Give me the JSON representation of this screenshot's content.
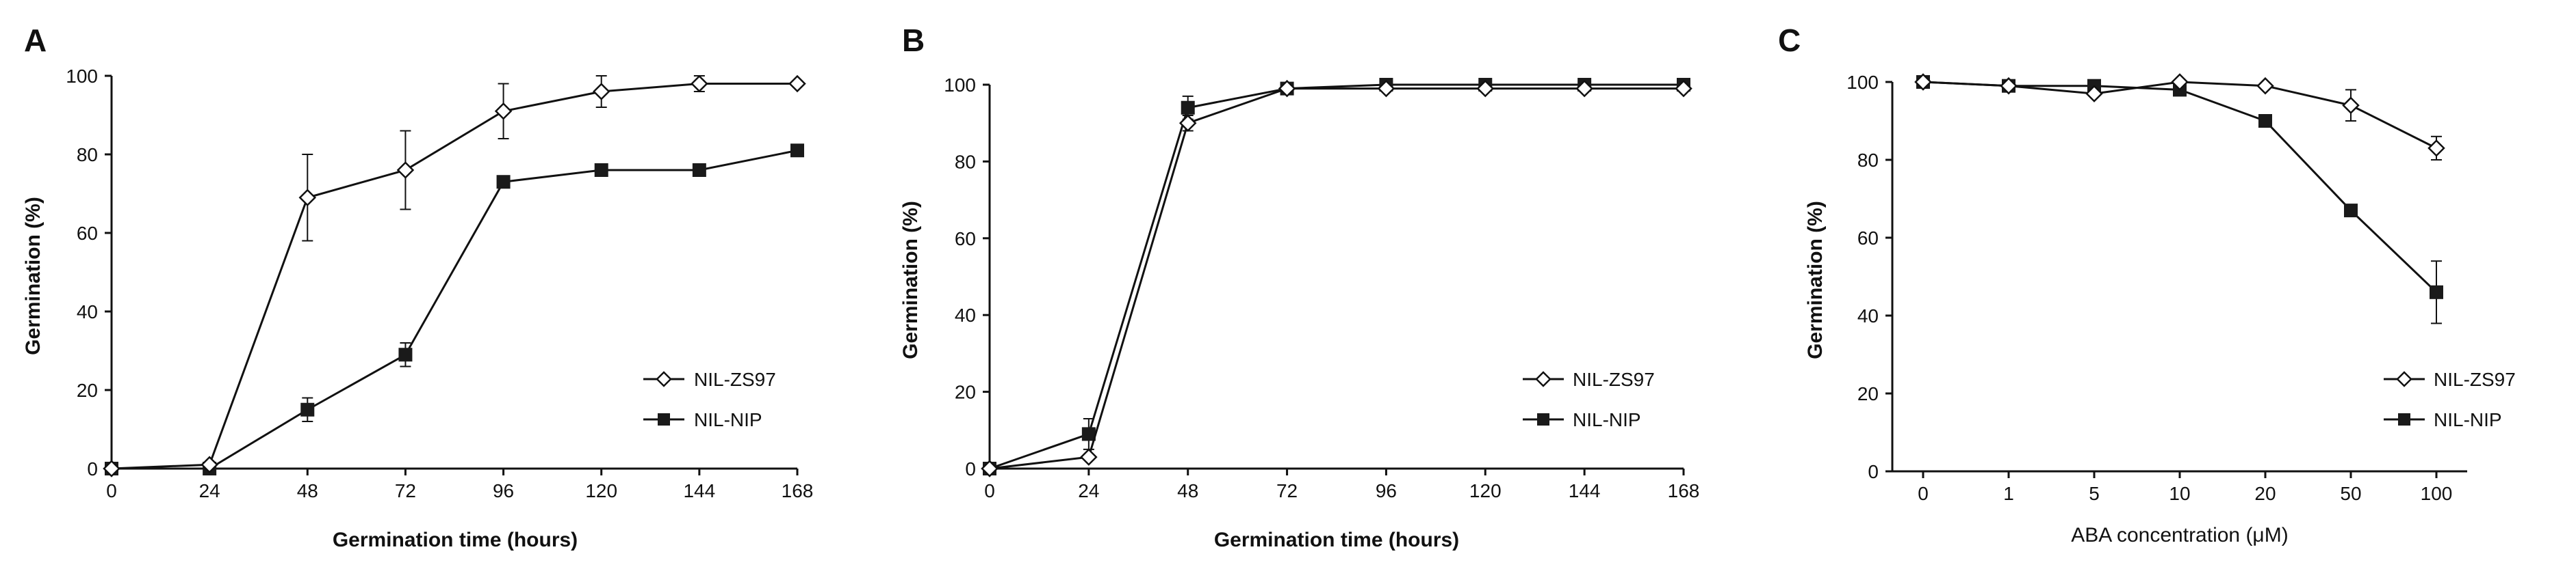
{
  "colors": {
    "axis": "#111111",
    "open_marker": "#ffffff",
    "filled_marker": "#1a1a1a"
  },
  "chart_data": [
    {
      "type": "line",
      "panel": "A",
      "xlabel": "Germination time (hours)",
      "ylabel": "Germination (%)",
      "x": [
        0,
        24,
        48,
        72,
        96,
        120,
        144,
        168
      ],
      "xticks": [
        "0",
        "24",
        "48",
        "72",
        "96",
        "120",
        "144",
        "168"
      ],
      "ylim": [
        0,
        100
      ],
      "yticks": [
        "0",
        "20",
        "40",
        "60",
        "80",
        "100"
      ],
      "legend_position": "bottom-right",
      "series": [
        {
          "name": "NIL-ZS97",
          "marker": "open-diamond",
          "values": [
            0,
            1,
            69,
            76,
            91,
            96,
            98,
            98
          ],
          "errors": [
            0,
            0,
            11,
            10,
            7,
            4,
            2,
            1
          ]
        },
        {
          "name": "NIL-NIP",
          "marker": "filled-square",
          "values": [
            0,
            0,
            15,
            29,
            73,
            76,
            76,
            81
          ],
          "errors": [
            0,
            0,
            3,
            3,
            1,
            1,
            1,
            1
          ]
        }
      ]
    },
    {
      "type": "line",
      "panel": "B",
      "xlabel": "Germination time (hours)",
      "ylabel": "Germination (%)",
      "x": [
        0,
        24,
        48,
        72,
        96,
        120,
        144,
        168
      ],
      "xticks": [
        "0",
        "24",
        "48",
        "72",
        "96",
        "120",
        "144",
        "168"
      ],
      "ylim": [
        0,
        100
      ],
      "yticks": [
        "0",
        "20",
        "40",
        "60",
        "80",
        "100"
      ],
      "legend_position": "bottom-right",
      "series": [
        {
          "name": "NIL-ZS97",
          "marker": "open-diamond",
          "values": [
            0,
            3,
            90,
            99,
            99,
            99,
            99,
            99
          ],
          "errors": [
            0,
            1,
            2,
            1,
            1,
            1,
            1,
            1
          ]
        },
        {
          "name": "NIL-NIP",
          "marker": "filled-square",
          "values": [
            0,
            9,
            94,
            99,
            100,
            100,
            100,
            100
          ],
          "errors": [
            0,
            4,
            3,
            1,
            1,
            1,
            1,
            1
          ]
        }
      ]
    },
    {
      "type": "line",
      "panel": "C",
      "xlabel": "ABA concentration (μM)",
      "ylabel": "Germination (%)",
      "categories": [
        "0",
        "1",
        "5",
        "10",
        "20",
        "50",
        "100"
      ],
      "ylim": [
        0,
        100
      ],
      "yticks": [
        "0",
        "20",
        "40",
        "60",
        "80",
        "100"
      ],
      "legend_position": "bottom-right",
      "series": [
        {
          "name": "NIL-ZS97",
          "marker": "open-diamond",
          "values": [
            100,
            99,
            97,
            100,
            99,
            94,
            83
          ],
          "errors": [
            1,
            1,
            1,
            1,
            1,
            4,
            3
          ]
        },
        {
          "name": "NIL-NIP",
          "marker": "filled-square",
          "values": [
            100,
            99,
            99,
            98,
            90,
            67,
            46
          ],
          "errors": [
            1,
            1,
            1,
            1,
            1,
            1,
            8
          ]
        }
      ]
    }
  ]
}
